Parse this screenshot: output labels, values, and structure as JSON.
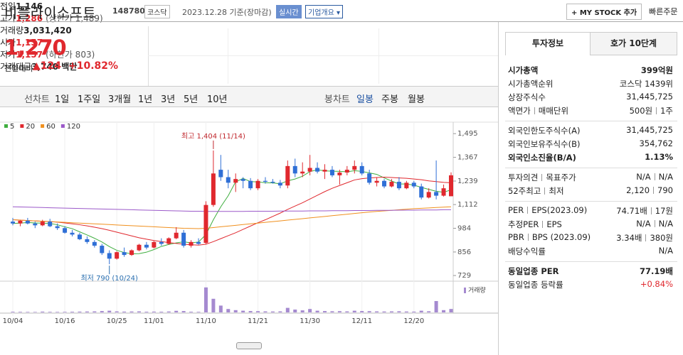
{
  "header": {
    "name": "비플라이소프트",
    "code": "148780",
    "market": "코스닥",
    "date": "2023.12.28 기준(장마감)",
    "realtime": "실시간",
    "company_info": "기업개요",
    "my_stock": "+ MY STOCK 추가",
    "quick_order": "빠른주문"
  },
  "price": {
    "current": "1,270",
    "change_label": "전일대비",
    "change": "▲124",
    "change_rate": "+10.82%"
  },
  "stats": [
    {
      "label": "전일",
      "value": "1,146"
    },
    {
      "label": "고가",
      "value": "1,286",
      "note": "(상한가 1,489)",
      "color": "#e0282e"
    },
    {
      "label": "거래량",
      "value": "3,031,420"
    },
    {
      "label": "시가",
      "value": "1,157",
      "color": "#e0282e"
    },
    {
      "label": "저가",
      "value": "1,157",
      "note": "(하한가 803)",
      "color": "#e0282e"
    },
    {
      "label": "거래대금",
      "value": "3,740 백만"
    }
  ],
  "period_tabs": {
    "line_label": "선차트",
    "line": [
      "1일",
      "1주일",
      "3개월",
      "1년",
      "3년",
      "5년",
      "10년"
    ],
    "candle_label": "봉차트",
    "candle": [
      "일봉",
      "주봉",
      "월봉"
    ],
    "active_color": "#1a4fa0"
  },
  "chart_data": {
    "type": "candlestick",
    "up_color": "#e0282e",
    "down_color": "#2f6fd6",
    "categories": [
      "10/04",
      null,
      null,
      null,
      null,
      null,
      null,
      "10/16",
      null,
      null,
      null,
      null,
      null,
      null,
      "10/25",
      null,
      null,
      null,
      null,
      "11/01",
      null,
      null,
      null,
      null,
      null,
      null,
      "11/10",
      null,
      null,
      null,
      null,
      null,
      null,
      "11/21",
      null,
      null,
      null,
      null,
      null,
      null,
      "11/30",
      null,
      null,
      null,
      null,
      null,
      null,
      "12/11",
      null,
      null,
      null,
      null,
      null,
      null,
      "12/20",
      null,
      null,
      null,
      null,
      null
    ],
    "candles": [
      [
        1020,
        1040,
        1000,
        1010
      ],
      [
        1010,
        1030,
        995,
        1025
      ],
      [
        1025,
        1040,
        1005,
        1010
      ],
      [
        1010,
        1020,
        985,
        1000
      ],
      [
        1000,
        1030,
        995,
        1020
      ],
      [
        1020,
        1035,
        990,
        995
      ],
      [
        995,
        1010,
        975,
        985
      ],
      [
        985,
        995,
        955,
        960
      ],
      [
        960,
        975,
        940,
        950
      ],
      [
        950,
        960,
        920,
        925
      ],
      [
        925,
        940,
        900,
        910
      ],
      [
        910,
        920,
        880,
        890
      ],
      [
        890,
        900,
        840,
        850
      ],
      [
        850,
        865,
        790,
        820
      ],
      [
        820,
        860,
        815,
        855
      ],
      [
        855,
        880,
        830,
        840
      ],
      [
        840,
        870,
        835,
        865
      ],
      [
        865,
        900,
        860,
        895
      ],
      [
        895,
        910,
        870,
        880
      ],
      [
        880,
        915,
        875,
        910
      ],
      [
        910,
        930,
        890,
        900
      ],
      [
        900,
        935,
        895,
        930
      ],
      [
        930,
        990,
        925,
        960
      ],
      [
        960,
        975,
        880,
        890
      ],
      [
        890,
        920,
        880,
        910
      ],
      [
        910,
        930,
        895,
        900
      ],
      [
        905,
        1130,
        900,
        1110
      ],
      [
        1110,
        1404,
        1100,
        1280
      ],
      [
        1300,
        1380,
        1240,
        1260
      ],
      [
        1260,
        1300,
        1200,
        1230
      ],
      [
        1230,
        1280,
        1180,
        1250
      ],
      [
        1250,
        1260,
        1200,
        1240
      ],
      [
        1240,
        1255,
        1190,
        1200
      ],
      [
        1200,
        1250,
        1190,
        1240
      ],
      [
        1240,
        1260,
        1225,
        1235
      ],
      [
        1235,
        1250,
        1225,
        1230
      ],
      [
        1230,
        1245,
        1200,
        1215
      ],
      [
        1215,
        1350,
        1200,
        1320
      ],
      [
        1320,
        1360,
        1260,
        1280
      ],
      [
        1280,
        1340,
        1260,
        1290
      ],
      [
        1290,
        1380,
        1270,
        1310
      ],
      [
        1310,
        1340,
        1280,
        1290
      ],
      [
        1290,
        1330,
        1250,
        1300
      ],
      [
        1300,
        1320,
        1260,
        1270
      ],
      [
        1270,
        1300,
        1220,
        1285
      ],
      [
        1285,
        1320,
        1270,
        1300
      ],
      [
        1300,
        1350,
        1280,
        1320
      ],
      [
        1320,
        1340,
        1270,
        1280
      ],
      [
        1280,
        1300,
        1220,
        1230
      ],
      [
        1230,
        1260,
        1210,
        1240
      ],
      [
        1240,
        1250,
        1200,
        1210
      ],
      [
        1210,
        1250,
        1205,
        1235
      ],
      [
        1235,
        1260,
        1190,
        1200
      ],
      [
        1200,
        1240,
        1195,
        1230
      ],
      [
        1230,
        1240,
        1200,
        1210
      ],
      [
        1210,
        1225,
        1140,
        1150
      ],
      [
        1150,
        1200,
        1145,
        1180
      ],
      [
        1180,
        1350,
        1140,
        1160
      ],
      [
        1160,
        1220,
        1155,
        1200
      ],
      [
        1157,
        1286,
        1157,
        1270
      ]
    ],
    "series": [
      {
        "name": "5",
        "color": "#3fae3f",
        "values": [
          1010,
          1012,
          1015,
          1013,
          1012,
          1010,
          1003,
          992,
          982,
          965,
          948,
          930,
          910,
          885,
          865,
          853,
          846,
          847,
          855,
          869,
          886,
          897,
          905,
          911,
          905,
          910,
          950,
          1030,
          1100,
          1160,
          1235,
          1253,
          1236,
          1234,
          1230,
          1229,
          1224,
          1240,
          1250,
          1265,
          1290,
          1300,
          1294,
          1292,
          1291,
          1289,
          1295,
          1291,
          1283,
          1275,
          1256,
          1239,
          1223,
          1223,
          1217,
          1205,
          1194,
          1184,
          1178,
          1192
        ]
      },
      {
        "name": "20",
        "color": "#e0282e",
        "values": [
          1030,
          1028,
          1026,
          1024,
          1022,
          1020,
          1017,
          1013,
          1008,
          1003,
          997,
          990,
          982,
          973,
          963,
          953,
          943,
          933,
          925,
          918,
          912,
          907,
          902,
          898,
          895,
          893,
          898,
          912,
          928,
          944,
          960,
          978,
          996,
          1014,
          1030,
          1048,
          1066,
          1086,
          1104,
          1122,
          1142,
          1162,
          1182,
          1200,
          1215,
          1230,
          1245,
          1252,
          1256,
          1258,
          1260,
          1258,
          1256,
          1254,
          1250,
          1246,
          1240,
          1236,
          1232,
          1230
        ]
      },
      {
        "name": "60",
        "color": "#f0901e",
        "values": [
          1030,
          1028,
          1026,
          1024,
          1022,
          1020,
          1018,
          1016,
          1014,
          1012,
          1010,
          1008,
          1006,
          1004,
          1002,
          1000,
          998,
          996,
          994,
          992,
          990,
          988,
          986,
          984,
          983,
          982,
          984,
          988,
          992,
          996,
          1000,
          1004,
          1008,
          1012,
          1016,
          1020,
          1024,
          1028,
          1032,
          1036,
          1040,
          1044,
          1048,
          1052,
          1056,
          1060,
          1064,
          1068,
          1072,
          1075,
          1078,
          1081,
          1084,
          1087,
          1090,
          1092,
          1094,
          1096,
          1098,
          1100
        ]
      },
      {
        "name": "120",
        "color": "#9b59c9",
        "values": [
          1100,
          1099,
          1098,
          1097,
          1096,
          1095,
          1094,
          1093,
          1092,
          1091,
          1090,
          1089,
          1088,
          1087,
          1086,
          1085,
          1084,
          1083,
          1082,
          1081,
          1080,
          1079,
          1078,
          1077,
          1076,
          1076,
          1075,
          1075,
          1075,
          1075,
          1075,
          1075,
          1076,
          1076,
          1076,
          1076,
          1077,
          1077,
          1077,
          1077,
          1078,
          1078,
          1078,
          1079,
          1079,
          1079,
          1080,
          1080,
          1080,
          1081,
          1081,
          1081,
          1082,
          1082,
          1082,
          1083,
          1083,
          1083,
          1084,
          1084
        ]
      }
    ],
    "ylim": [
      710,
      1515
    ],
    "yticks": [
      {
        "value": 1495,
        "label": "1,495"
      },
      {
        "value": 1367,
        "label": "1,367"
      },
      {
        "value": 1239,
        "label": "1,239"
      },
      {
        "value": 1112,
        "label": "1,112"
      },
      984,
      856,
      729
    ],
    "annotations": [
      {
        "text": "최고 1,404 (11/14)",
        "value": 1404,
        "color": "#c0282e"
      },
      {
        "text": "최저 790 (10/24)",
        "value": 790,
        "color": "#2a6fb0"
      }
    ],
    "volume": {
      "name": "거래량",
      "color": "#a58ad0",
      "ylim": [
        0,
        25000000
      ],
      "values": [
        600000,
        500000,
        450000,
        400000,
        700000,
        500000,
        450000,
        500000,
        600000,
        700000,
        800000,
        900000,
        1200000,
        1500000,
        900000,
        700000,
        800000,
        900000,
        600000,
        700000,
        600000,
        800000,
        1400000,
        1200000,
        600000,
        500000,
        22000000,
        12000000,
        6000000,
        3000000,
        2000000,
        1500000,
        1200000,
        1100000,
        900000,
        800000,
        900000,
        4000000,
        2500000,
        1800000,
        3000000,
        1500000,
        1200000,
        1000000,
        1100000,
        900000,
        1500000,
        1200000,
        1100000,
        900000,
        800000,
        900000,
        1000000,
        800000,
        700000,
        1500000,
        1000000,
        10000000,
        2000000,
        3031420
      ]
    }
  },
  "invest": {
    "tabs": [
      "투자정보",
      "호가 10단계"
    ],
    "groups": [
      [
        {
          "labels": [
            "시가총액"
          ],
          "values": [
            "399억원"
          ],
          "bold": true
        },
        {
          "labels": [
            "시가총액순위"
          ],
          "values": [
            "코스닥 1439위"
          ]
        },
        {
          "labels": [
            "상장주식수"
          ],
          "values": [
            "31,445,725"
          ]
        },
        {
          "labels": [
            "액면가",
            "매매단위"
          ],
          "values": [
            "500원",
            "1주"
          ]
        }
      ],
      [
        {
          "labels": [
            "외국인한도주식수(A)"
          ],
          "values": [
            "31,445,725"
          ]
        },
        {
          "labels": [
            "외국인보유주식수(B)"
          ],
          "values": [
            "354,762"
          ]
        },
        {
          "labels": [
            "외국인소진율(B/A)"
          ],
          "values": [
            "1.13%"
          ],
          "bold": true
        }
      ],
      [
        {
          "labels": [
            "투자의견",
            "목표주가"
          ],
          "values": [
            "N/A",
            "N/A"
          ]
        },
        {
          "labels": [
            "52주최고",
            "최저"
          ],
          "values": [
            "2,120",
            "790"
          ]
        }
      ],
      [
        {
          "labels": [
            "PER",
            "EPS(2023.09)"
          ],
          "values": [
            "74.71배",
            "17원"
          ]
        },
        {
          "labels": [
            "추정PER",
            "EPS"
          ],
          "values": [
            "N/A",
            "N/A"
          ]
        },
        {
          "labels": [
            "PBR",
            "BPS (2023.09)"
          ],
          "values": [
            "3.34배",
            "380원"
          ]
        },
        {
          "labels": [
            "배당수익률"
          ],
          "values": [
            "N/A"
          ]
        }
      ],
      [
        {
          "labels": [
            "동일업종 PER"
          ],
          "values": [
            "77.19배"
          ],
          "bold": true
        },
        {
          "labels": [
            "동일업종 등락률"
          ],
          "values": [
            "+0.84%"
          ],
          "color": "#e0282e"
        }
      ]
    ]
  }
}
